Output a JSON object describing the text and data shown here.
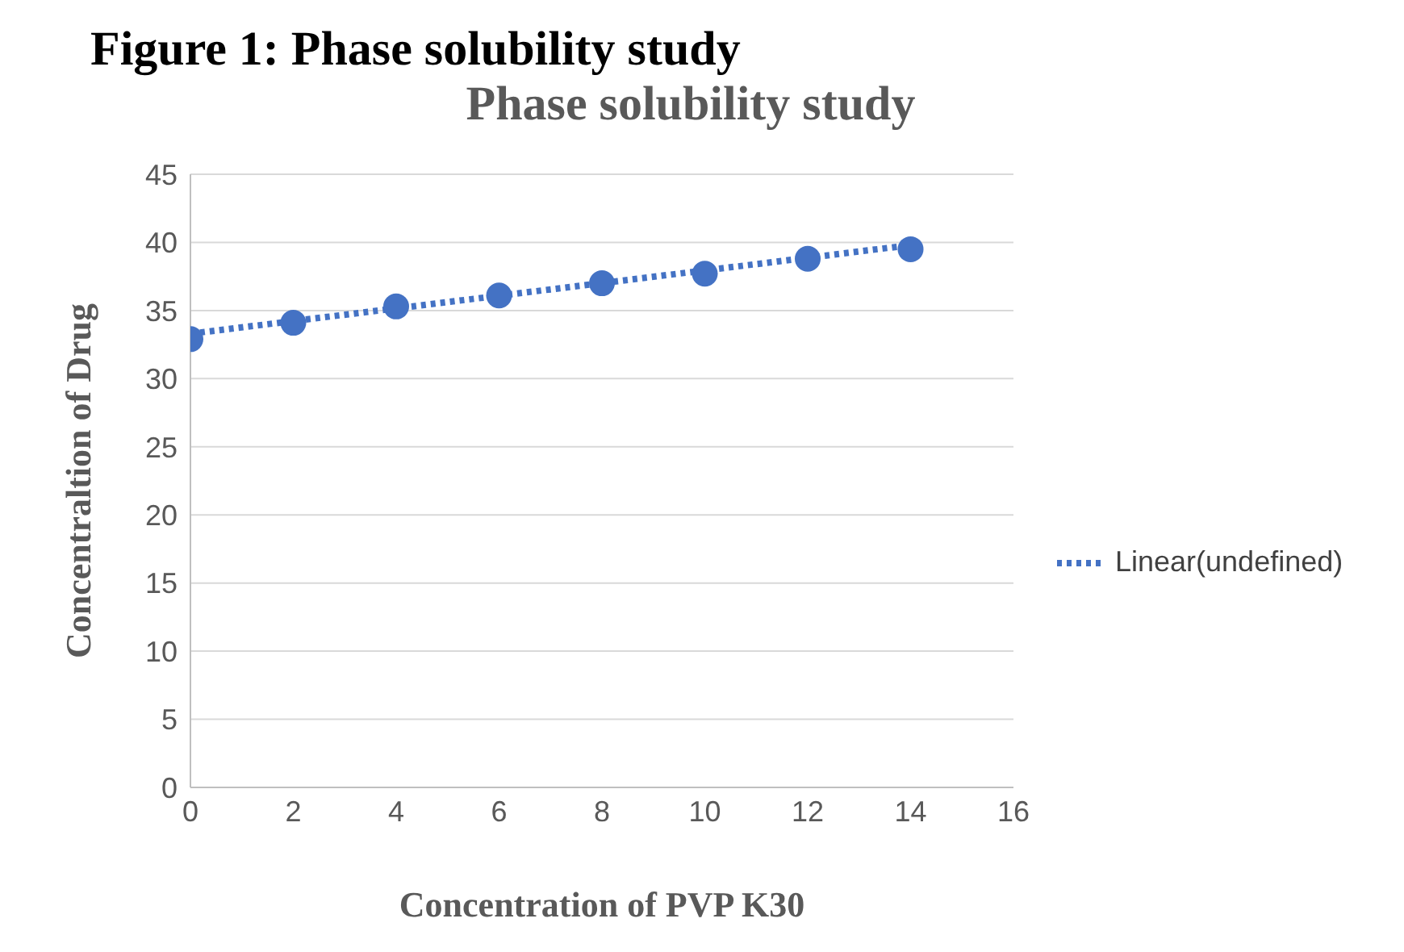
{
  "chart_data": {
    "type": "scatter",
    "title": "Figure 1: Phase solubility study",
    "subtitle": "Phase solubility study",
    "xlabel": "Concentration of PVP K30",
    "ylabel": "Concentraltion of Drug",
    "x": [
      0,
      2,
      4,
      6,
      8,
      10,
      12,
      14
    ],
    "series": [
      {
        "color": "#4472c4",
        "values": [
          32.9,
          34.1,
          35.3,
          36.1,
          37.0,
          37.7,
          38.8,
          39.5
        ]
      },
      {
        "type": "line",
        "name": "Linear(undefined)",
        "color": "#4472c4",
        "line_style": "dotted",
        "marker": "none",
        "x": [
          0,
          14
        ],
        "values": [
          33.3,
          39.8
        ]
      }
    ],
    "xlim": [
      0,
      16
    ],
    "xticks": [
      0,
      2,
      4,
      6,
      8,
      10,
      12,
      14,
      16
    ],
    "ylim": [
      0,
      45
    ],
    "yticks": [
      0,
      5,
      10,
      15,
      20,
      25,
      30,
      35,
      40,
      45
    ],
    "grid": "y",
    "legend": "right",
    "marker": "circle"
  }
}
